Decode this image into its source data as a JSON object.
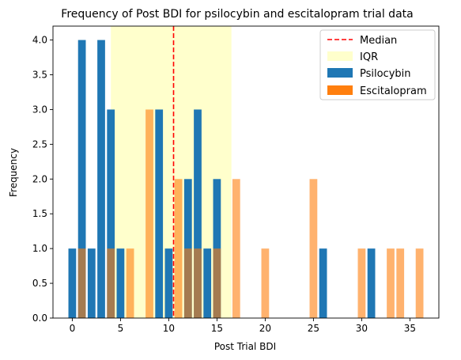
{
  "chart_data": {
    "type": "bar",
    "title": "Frequency of Post BDI for psilocybin and escitalopram trial data",
    "xlabel": "Post Trial BDI",
    "ylabel": "Frequency",
    "xlim": [
      -2,
      38
    ],
    "ylim": [
      0,
      4.2
    ],
    "xticks": [
      0,
      5,
      10,
      15,
      20,
      25,
      30,
      35
    ],
    "yticks": [
      0.0,
      0.5,
      1.0,
      1.5,
      2.0,
      2.5,
      3.0,
      3.5,
      4.0
    ],
    "grid": false,
    "legend_position": "top-right",
    "series": [
      {
        "name": "Psilocybin",
        "color": "#1f77b4",
        "x": [
          0,
          1,
          2,
          3,
          4,
          5,
          9,
          10,
          12,
          13,
          14,
          15,
          26,
          31
        ],
        "values": [
          1,
          4,
          1,
          4,
          3,
          1,
          3,
          1,
          2,
          3,
          1,
          2,
          1,
          1
        ]
      },
      {
        "name": "Escitalopram",
        "color": "#ff7f0e",
        "x": [
          1,
          4,
          6,
          8,
          11,
          12,
          13,
          15,
          17,
          20,
          25,
          30,
          33,
          34,
          36
        ],
        "values": [
          1,
          1,
          1,
          3,
          2,
          1,
          1,
          1,
          2,
          1,
          2,
          1,
          1,
          1,
          1
        ]
      }
    ],
    "median": {
      "name": "Median",
      "value": 10.5,
      "color": "#ff0000"
    },
    "iqr": {
      "name": "IQR",
      "range": [
        4,
        16.5
      ],
      "color": "#ffffcc"
    }
  }
}
